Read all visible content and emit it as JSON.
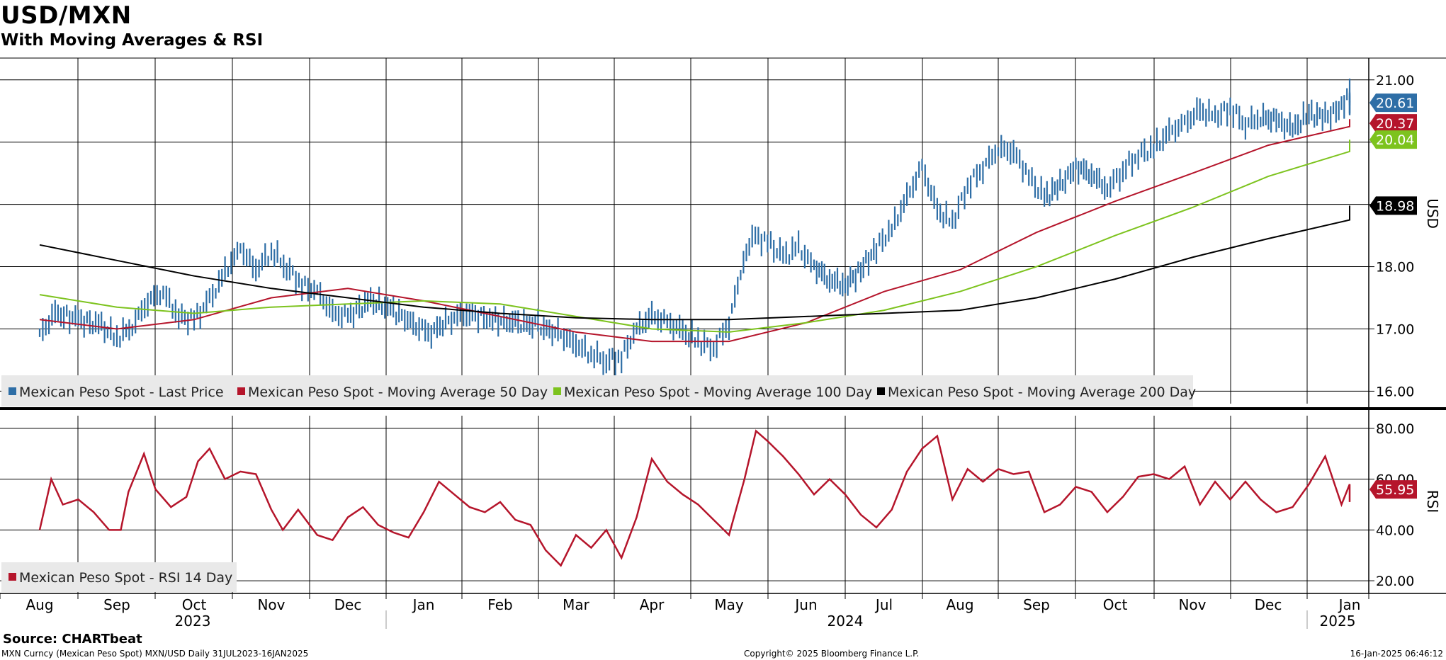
{
  "title": "USD/MXN",
  "subtitle": "With Moving Averages & RSI",
  "source": "Source: CHARTbeat",
  "footer": {
    "left": "MXN Curncy (Mexican Peso Spot) MXN/USD  Daily 31JUL2023-16JAN2025",
    "center": "Copyright© 2025 Bloomberg Finance L.P.",
    "right": "16-Jan-2025 06:46:12"
  },
  "colors": {
    "last_price": "#2e6ea6",
    "ma50": "#b5152b",
    "ma100": "#7dc31e",
    "ma200": "#000000",
    "rsi": "#b5152b"
  },
  "chart_data": [
    {
      "type": "line",
      "name": "price-panel",
      "ylabel": "USD",
      "ylim": [
        15.8,
        21.35
      ],
      "yticks": [
        "16.00",
        "17.00",
        "18.00",
        "19.00",
        "20.00",
        "21.00"
      ],
      "grid": true,
      "legend_position": "bottom-left",
      "x_months": [
        "Aug",
        "Sep",
        "Oct",
        "Nov",
        "Dec",
        "Jan",
        "Feb",
        "Mar",
        "Apr",
        "May",
        "Jun",
        "Jul",
        "Aug",
        "Sep",
        "Oct",
        "Nov",
        "Dec",
        "Jan"
      ],
      "x_years": [
        "2023",
        "2024",
        "2025"
      ],
      "series": [
        {
          "name": "Mexican Peso Spot - Last Price",
          "key": "last_price",
          "style": "bars",
          "points": [
            [
              0,
              16.9
            ],
            [
              0.2,
              17.25
            ],
            [
              0.5,
              17.15
            ],
            [
              0.8,
              17.05
            ],
            [
              1.0,
              16.85
            ],
            [
              1.2,
              17.05
            ],
            [
              1.4,
              17.45
            ],
            [
              1.6,
              17.6
            ],
            [
              1.8,
              17.2
            ],
            [
              2.0,
              17.15
            ],
            [
              2.2,
              17.45
            ],
            [
              2.4,
              17.9
            ],
            [
              2.6,
              18.3
            ],
            [
              2.8,
              17.95
            ],
            [
              3.0,
              18.25
            ],
            [
              3.2,
              18.0
            ],
            [
              3.4,
              17.7
            ],
            [
              3.6,
              17.6
            ],
            [
              3.8,
              17.25
            ],
            [
              4.0,
              17.2
            ],
            [
              4.3,
              17.45
            ],
            [
              4.6,
              17.3
            ],
            [
              4.9,
              17.05
            ],
            [
              5.1,
              16.95
            ],
            [
              5.4,
              17.2
            ],
            [
              5.6,
              17.25
            ],
            [
              5.9,
              17.15
            ],
            [
              6.2,
              17.1
            ],
            [
              6.5,
              17.05
            ],
            [
              6.8,
              16.9
            ],
            [
              7.0,
              16.75
            ],
            [
              7.2,
              16.6
            ],
            [
              7.4,
              16.5
            ],
            [
              7.6,
              16.55
            ],
            [
              7.8,
              17.0
            ],
            [
              8.0,
              17.2
            ],
            [
              8.2,
              17.1
            ],
            [
              8.4,
              16.95
            ],
            [
              8.6,
              16.8
            ],
            [
              8.8,
              16.7
            ],
            [
              9.0,
              17.1
            ],
            [
              9.15,
              17.9
            ],
            [
              9.3,
              18.5
            ],
            [
              9.5,
              18.4
            ],
            [
              9.7,
              18.15
            ],
            [
              9.9,
              18.3
            ],
            [
              10.1,
              18.0
            ],
            [
              10.3,
              17.8
            ],
            [
              10.5,
              17.7
            ],
            [
              10.7,
              17.95
            ],
            [
              10.9,
              18.3
            ],
            [
              11.1,
              18.6
            ],
            [
              11.3,
              19.1
            ],
            [
              11.5,
              19.6
            ],
            [
              11.7,
              18.9
            ],
            [
              11.9,
              18.7
            ],
            [
              12.1,
              19.3
            ],
            [
              12.3,
              19.6
            ],
            [
              12.5,
              19.9
            ],
            [
              12.7,
              19.85
            ],
            [
              12.9,
              19.45
            ],
            [
              13.1,
              19.1
            ],
            [
              13.3,
              19.3
            ],
            [
              13.5,
              19.6
            ],
            [
              13.7,
              19.5
            ],
            [
              13.9,
              19.25
            ],
            [
              14.1,
              19.55
            ],
            [
              14.3,
              19.8
            ],
            [
              14.5,
              19.9
            ],
            [
              14.7,
              20.15
            ],
            [
              14.9,
              20.3
            ],
            [
              15.1,
              20.5
            ],
            [
              15.3,
              20.4
            ],
            [
              15.5,
              20.55
            ],
            [
              15.7,
              20.3
            ],
            [
              15.9,
              20.4
            ],
            [
              16.1,
              20.35
            ],
            [
              16.3,
              20.2
            ],
            [
              16.5,
              20.45
            ],
            [
              16.7,
              20.4
            ],
            [
              16.9,
              20.55
            ],
            [
              17.0,
              20.85
            ],
            [
              17.2,
              20.6
            ],
            [
              17.4,
              20.65
            ],
            [
              17.6,
              20.61
            ]
          ]
        },
        {
          "name": "Mexican Peso Spot - Moving Average 50 Day",
          "key": "ma50",
          "style": "line",
          "points": [
            [
              0,
              17.15
            ],
            [
              1,
              17.0
            ],
            [
              2,
              17.15
            ],
            [
              3,
              17.5
            ],
            [
              4,
              17.65
            ],
            [
              5,
              17.45
            ],
            [
              6,
              17.2
            ],
            [
              7,
              16.95
            ],
            [
              8,
              16.8
            ],
            [
              9,
              16.8
            ],
            [
              10,
              17.1
            ],
            [
              11,
              17.6
            ],
            [
              12,
              17.95
            ],
            [
              13,
              18.55
            ],
            [
              14,
              19.05
            ],
            [
              15,
              19.5
            ],
            [
              16,
              19.95
            ],
            [
              17,
              20.25
            ],
            [
              17.6,
              20.37
            ]
          ]
        },
        {
          "name": "Mexican Peso Spot - Moving Average 100 Day",
          "key": "ma100",
          "style": "line",
          "points": [
            [
              0,
              17.55
            ],
            [
              1,
              17.35
            ],
            [
              2,
              17.25
            ],
            [
              3,
              17.35
            ],
            [
              4,
              17.4
            ],
            [
              5,
              17.45
            ],
            [
              6,
              17.4
            ],
            [
              7,
              17.2
            ],
            [
              8,
              17.0
            ],
            [
              9,
              16.95
            ],
            [
              10,
              17.1
            ],
            [
              11,
              17.3
            ],
            [
              12,
              17.6
            ],
            [
              13,
              18.0
            ],
            [
              14,
              18.5
            ],
            [
              15,
              18.95
            ],
            [
              16,
              19.45
            ],
            [
              17,
              19.85
            ],
            [
              17.6,
              20.04
            ]
          ]
        },
        {
          "name": "Mexican Peso Spot - Moving Average 200 Day",
          "key": "ma200",
          "style": "line",
          "points": [
            [
              0,
              18.35
            ],
            [
              1,
              18.1
            ],
            [
              2,
              17.85
            ],
            [
              3,
              17.65
            ],
            [
              4,
              17.5
            ],
            [
              5,
              17.35
            ],
            [
              6,
              17.25
            ],
            [
              7,
              17.18
            ],
            [
              8,
              17.15
            ],
            [
              9,
              17.15
            ],
            [
              10,
              17.2
            ],
            [
              11,
              17.25
            ],
            [
              12,
              17.3
            ],
            [
              13,
              17.5
            ],
            [
              14,
              17.8
            ],
            [
              15,
              18.15
            ],
            [
              16,
              18.45
            ],
            [
              17,
              18.75
            ],
            [
              17.6,
              18.98
            ]
          ]
        }
      ],
      "last_values": [
        {
          "key": "last_price",
          "label": "20.61",
          "value": 20.61
        },
        {
          "key": "ma50",
          "label": "20.37",
          "value": 20.37
        },
        {
          "key": "ma100",
          "label": "20.04",
          "value": 20.04
        },
        {
          "key": "ma200",
          "label": "18.98",
          "value": 18.98
        }
      ]
    },
    {
      "type": "line",
      "name": "rsi-panel",
      "ylabel": "RSI",
      "ylim": [
        15,
        85
      ],
      "yticks": [
        "20.00",
        "40.00",
        "60.00",
        "80.00"
      ],
      "grid": true,
      "legend_position": "bottom-left",
      "series": [
        {
          "name": "Mexican Peso Spot - RSI 14 Day",
          "key": "rsi",
          "points": [
            [
              0,
              40
            ],
            [
              0.15,
              60
            ],
            [
              0.3,
              50
            ],
            [
              0.5,
              52
            ],
            [
              0.7,
              47
            ],
            [
              0.9,
              40
            ],
            [
              1.05,
              40
            ],
            [
              1.15,
              55
            ],
            [
              1.35,
              70
            ],
            [
              1.5,
              56
            ],
            [
              1.7,
              49
            ],
            [
              1.9,
              53
            ],
            [
              2.05,
              67
            ],
            [
              2.2,
              72
            ],
            [
              2.4,
              60
            ],
            [
              2.6,
              63
            ],
            [
              2.8,
              62
            ],
            [
              3.0,
              48
            ],
            [
              3.15,
              40
            ],
            [
              3.35,
              48
            ],
            [
              3.6,
              38
            ],
            [
              3.8,
              36
            ],
            [
              4.0,
              45
            ],
            [
              4.2,
              49
            ],
            [
              4.4,
              42
            ],
            [
              4.6,
              39
            ],
            [
              4.8,
              37
            ],
            [
              5.0,
              47
            ],
            [
              5.2,
              59
            ],
            [
              5.4,
              54
            ],
            [
              5.6,
              49
            ],
            [
              5.8,
              47
            ],
            [
              6.0,
              51
            ],
            [
              6.2,
              44
            ],
            [
              6.4,
              42
            ],
            [
              6.6,
              32
            ],
            [
              6.8,
              26
            ],
            [
              7.0,
              38
            ],
            [
              7.2,
              33
            ],
            [
              7.4,
              40
            ],
            [
              7.6,
              29
            ],
            [
              7.8,
              45
            ],
            [
              8.0,
              68
            ],
            [
              8.2,
              59
            ],
            [
              8.4,
              54
            ],
            [
              8.6,
              50
            ],
            [
              8.8,
              44
            ],
            [
              9.0,
              38
            ],
            [
              9.2,
              60
            ],
            [
              9.35,
              79
            ],
            [
              9.5,
              75
            ],
            [
              9.7,
              69
            ],
            [
              9.9,
              62
            ],
            [
              10.1,
              54
            ],
            [
              10.3,
              60
            ],
            [
              10.5,
              54
            ],
            [
              10.7,
              46
            ],
            [
              10.9,
              41
            ],
            [
              11.1,
              48
            ],
            [
              11.3,
              63
            ],
            [
              11.5,
              72
            ],
            [
              11.7,
              77
            ],
            [
              11.9,
              52
            ],
            [
              12.1,
              64
            ],
            [
              12.3,
              59
            ],
            [
              12.5,
              64
            ],
            [
              12.7,
              62
            ],
            [
              12.9,
              63
            ],
            [
              13.1,
              47
            ],
            [
              13.3,
              50
            ],
            [
              13.5,
              57
            ],
            [
              13.7,
              55
            ],
            [
              13.9,
              47
            ],
            [
              14.1,
              53
            ],
            [
              14.3,
              61
            ],
            [
              14.5,
              62
            ],
            [
              14.7,
              60
            ],
            [
              14.9,
              65
            ],
            [
              15.1,
              50
            ],
            [
              15.3,
              59
            ],
            [
              15.5,
              52
            ],
            [
              15.7,
              59
            ],
            [
              15.9,
              52
            ],
            [
              16.1,
              47
            ],
            [
              16.3,
              49
            ],
            [
              16.5,
              58
            ],
            [
              16.7,
              69
            ],
            [
              16.9,
              50
            ],
            [
              17.1,
              58
            ],
            [
              17.3,
              51
            ],
            [
              17.45,
              55.95
            ]
          ]
        }
      ],
      "last_values": [
        {
          "key": "rsi",
          "label": "55.95",
          "value": 55.95
        }
      ]
    }
  ]
}
